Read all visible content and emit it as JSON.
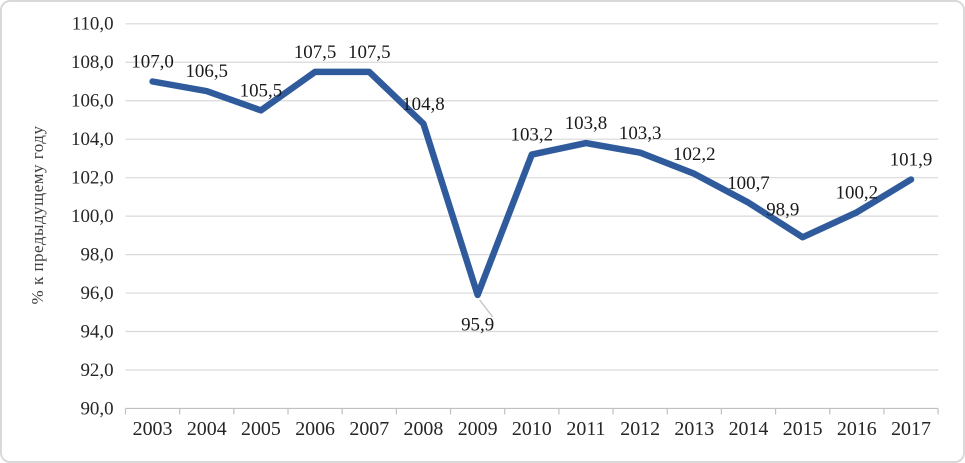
{
  "chart_data": {
    "type": "line",
    "title": "",
    "ylabel": "% к предыдущему году",
    "xlabel": "",
    "categories": [
      "2003",
      "2004",
      "2005",
      "2006",
      "2007",
      "2008",
      "2009",
      "2010",
      "2011",
      "2012",
      "2013",
      "2014",
      "2015",
      "2016",
      "2017"
    ],
    "series": [
      {
        "name": "percent-to-previous-year",
        "values": [
          107.0,
          106.5,
          105.5,
          107.5,
          107.5,
          104.8,
          95.9,
          103.2,
          103.8,
          103.3,
          102.2,
          100.7,
          98.9,
          100.2,
          101.9
        ],
        "data_labels": [
          "107,0",
          "106,5",
          "105,5",
          "107,5",
          "107,5",
          "104,8",
          "95,9",
          "103,2",
          "103,8",
          "103,3",
          "102,2",
          "100,7",
          "98,9",
          "100,2",
          "101,9"
        ]
      }
    ],
    "ylim": [
      90,
      110
    ],
    "ytick_step": 2,
    "ytick_labels": [
      "90,0",
      "92,0",
      "94,0",
      "96,0",
      "98,0",
      "100,0",
      "102,0",
      "104,0",
      "106,0",
      "108,0",
      "110,0"
    ],
    "decimal_separator": ",",
    "grid": true,
    "legend_position": "none",
    "colors": {
      "line": "#2f5b9d",
      "grid": "#d9d9d9",
      "axis": "#c0c0c0",
      "tick": "#bfbfbf",
      "label_text": "#1a1a1a",
      "tick_text": "#262626",
      "leader": "#c9c9c9",
      "background": "#ffffff",
      "border": "#d9d9d9"
    }
  }
}
